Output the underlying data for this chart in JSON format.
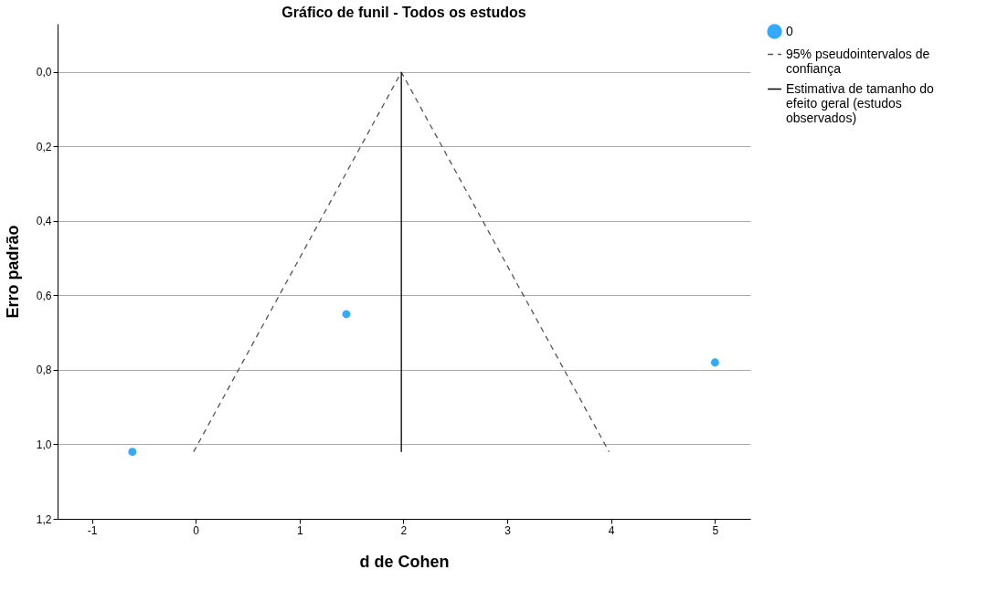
{
  "chart_data": {
    "type": "scatter",
    "title": "Gráfico de funil - Todos os estudos",
    "xlabel": "d de Cohen",
    "ylabel": "Erro padrão",
    "xlim": [
      -1.33,
      5.34
    ],
    "xticks": [
      -1,
      0,
      1,
      2,
      3,
      4,
      5
    ],
    "ylim": [
      1.2,
      -0.13
    ],
    "yticks": [
      {
        "value": 0,
        "label": "0,0"
      },
      {
        "value": 0.2,
        "label": "0,2"
      },
      {
        "value": 0.4,
        "label": "0,4"
      },
      {
        "value": 0.6,
        "label": "0,6"
      },
      {
        "value": 0.8,
        "label": "0,8"
      },
      {
        "value": 1,
        "label": "1,0"
      },
      {
        "value": 1.2,
        "label": "1,2"
      }
    ],
    "grid": "y",
    "legend": "top right",
    "series": [
      {
        "name": "0",
        "marker": "circle",
        "color": "#33aaff",
        "x": [
          -0.61,
          1.45,
          5.0
        ],
        "values": [
          1.02,
          0.65,
          0.78
        ]
      },
      {
        "name": "95% pseudointervalos de confiança",
        "type": "line",
        "line_style": "dashed",
        "color": "#555555",
        "x": [
          -0.02,
          1.98,
          3.98
        ],
        "values": [
          1.02,
          0,
          1.02
        ]
      },
      {
        "name": "Estimativa de tamanho do efeito geral (estudos observados)",
        "type": "line",
        "line_style": "solid",
        "color": "#000000",
        "x": [
          1.98,
          1.98
        ],
        "values": [
          0,
          1.02
        ]
      }
    ]
  }
}
